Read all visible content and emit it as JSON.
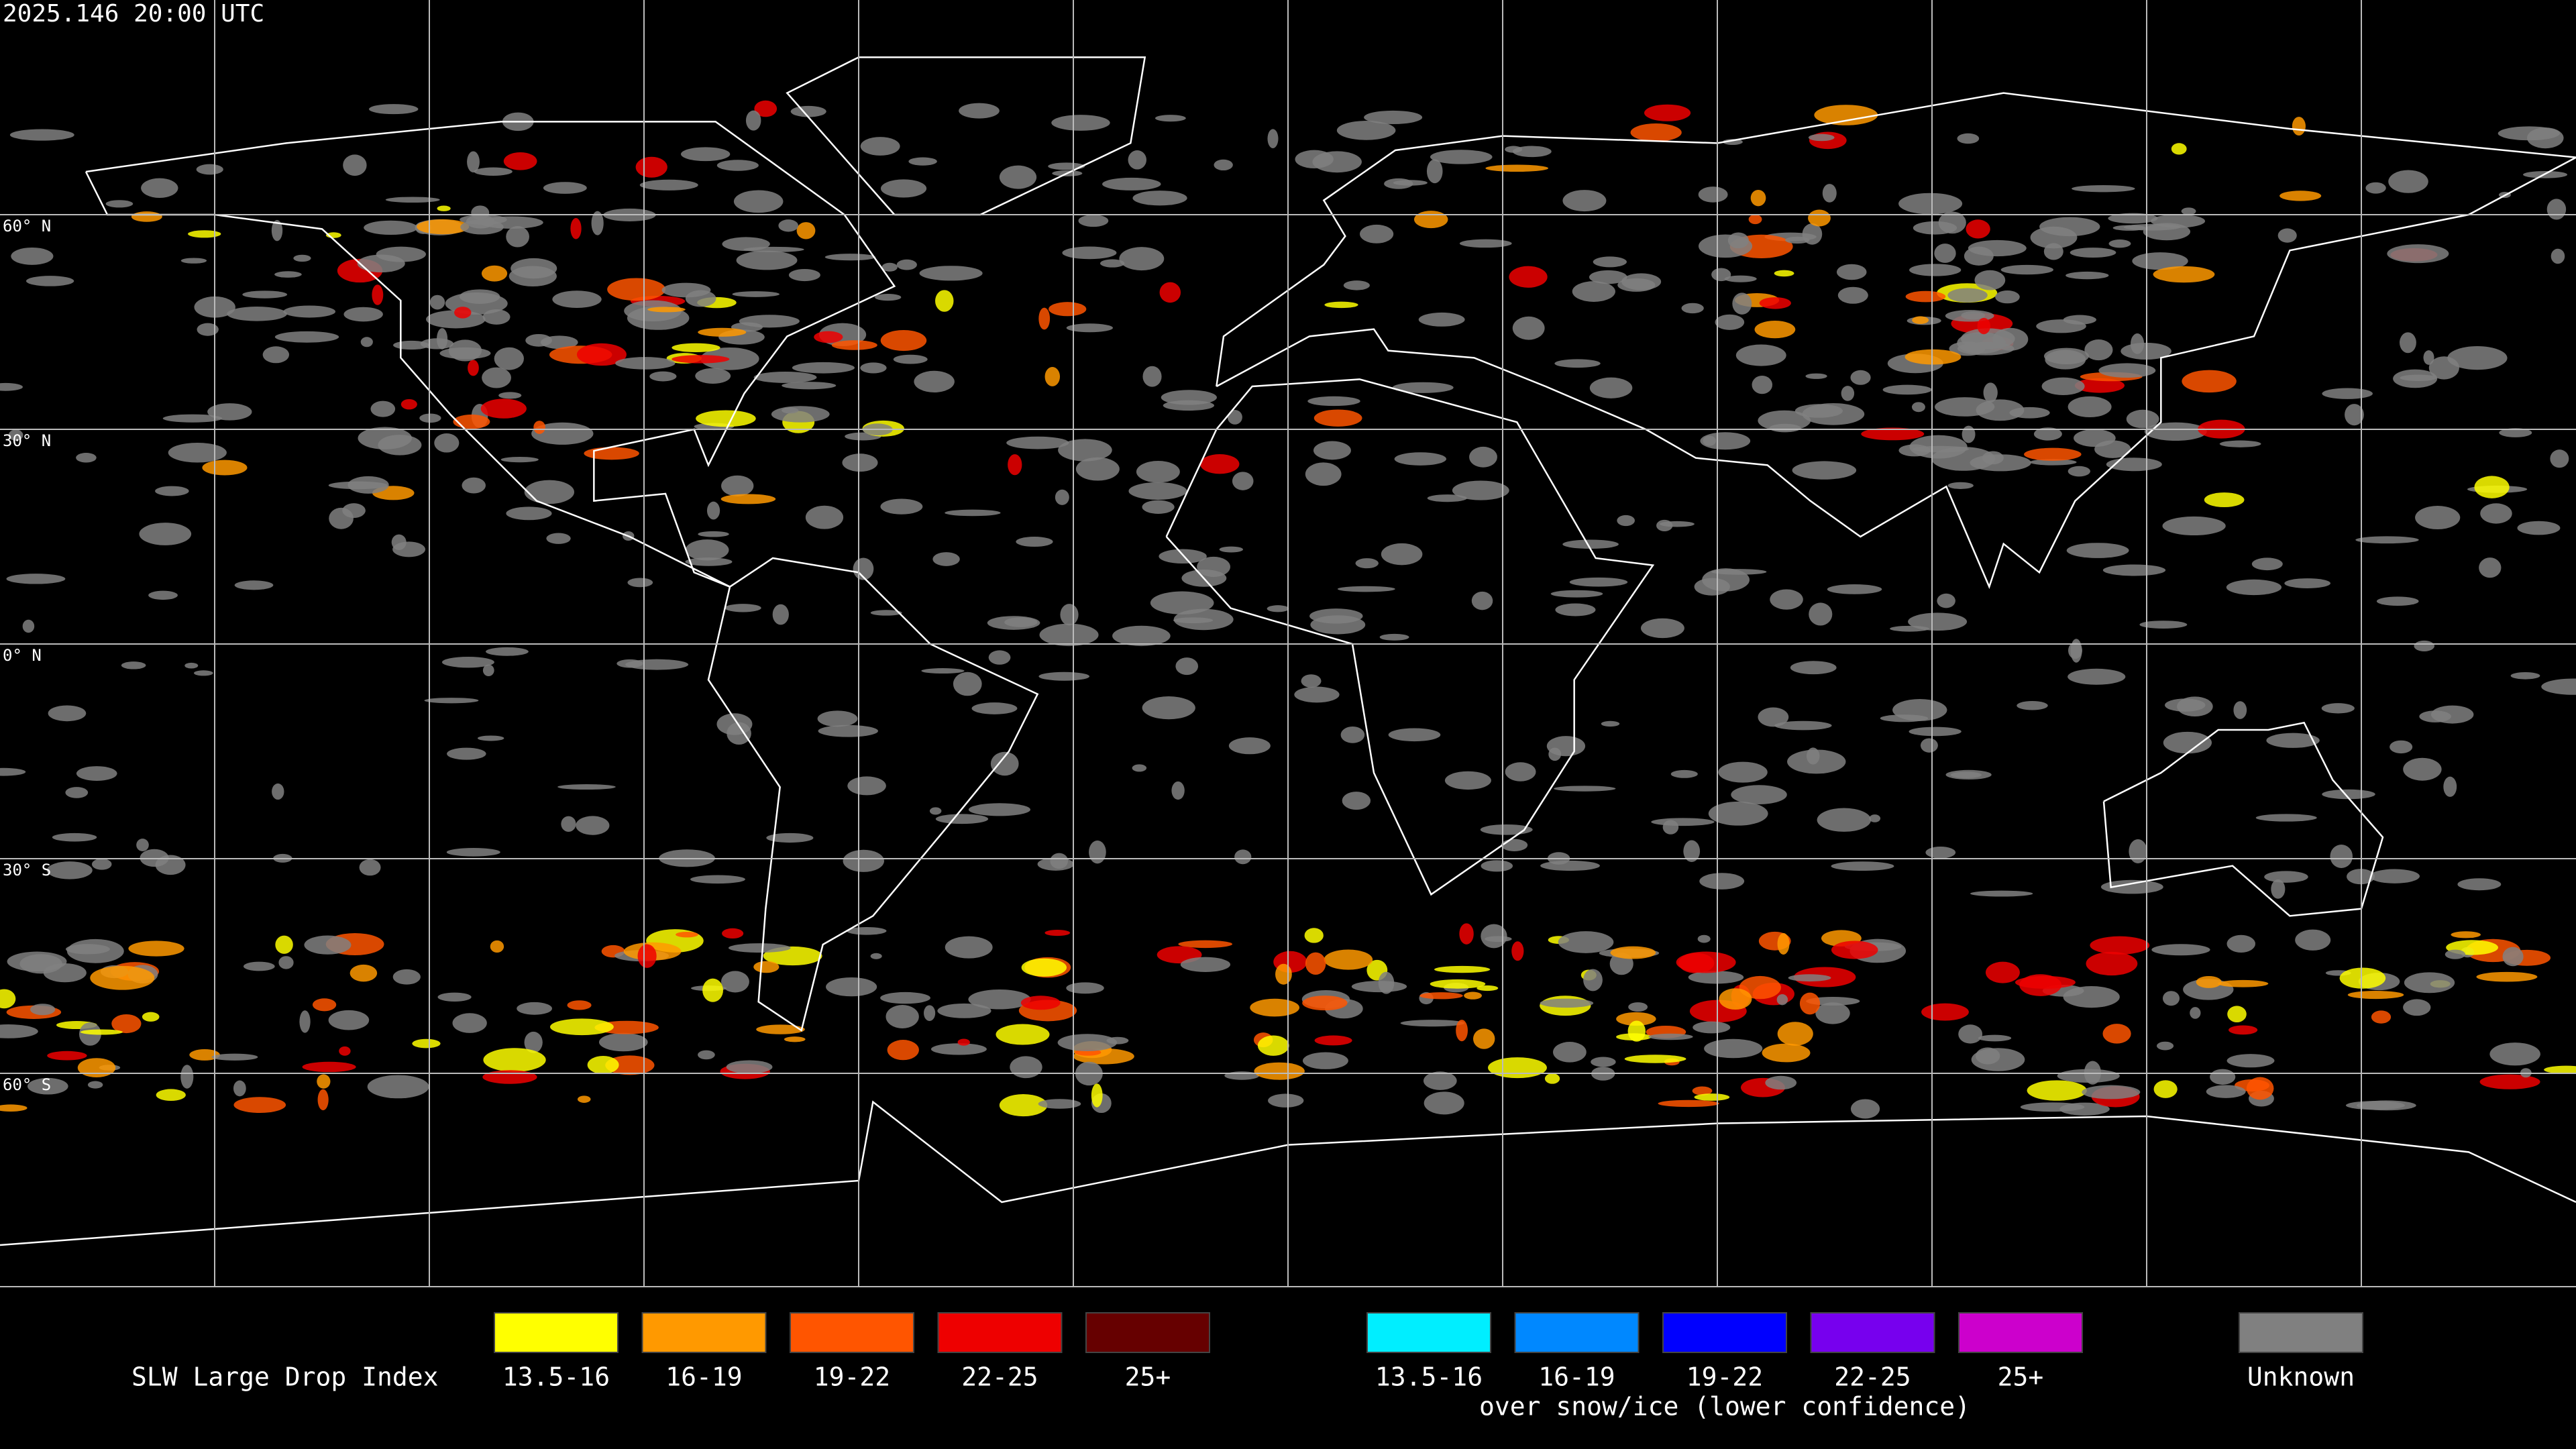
{
  "header": {
    "timestamp": "2025.146 20:00 UTC"
  },
  "map": {
    "lat_labels": [
      "60° N",
      "30° N",
      "0° N",
      "30° S",
      "60° S"
    ]
  },
  "legend": {
    "title": "SLW Large Drop Index",
    "warm": [
      {
        "label": "13.5-16",
        "color": "#ffff00"
      },
      {
        "label": "16-19",
        "color": "#ff9900"
      },
      {
        "label": "19-22",
        "color": "#ff5500"
      },
      {
        "label": "22-25",
        "color": "#ee0000"
      },
      {
        "label": "25+",
        "color": "#660000"
      }
    ],
    "snow": [
      {
        "label": "13.5-16",
        "color": "#00eeff"
      },
      {
        "label": "16-19",
        "color": "#0088ff"
      },
      {
        "label": "19-22",
        "color": "#0000ff"
      },
      {
        "label": "22-25",
        "color": "#7700ee"
      },
      {
        "label": "25+",
        "color": "#cc00cc"
      }
    ],
    "snow_caption": "over snow/ice (lower confidence)",
    "unknown": {
      "label": "Unknown",
      "color": "#808080"
    }
  }
}
